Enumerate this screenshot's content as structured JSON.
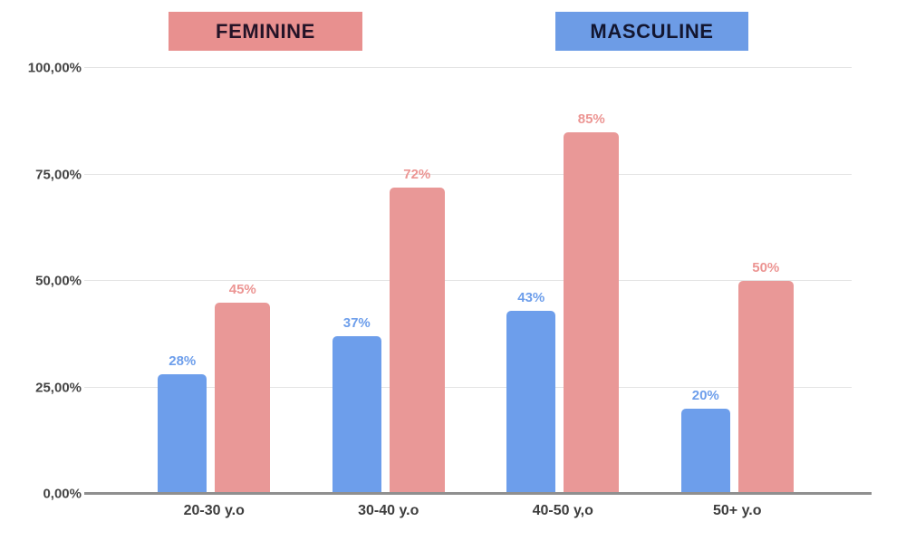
{
  "legend": {
    "feminine": {
      "label": "FEMININE",
      "bg": "#e8908f",
      "text": "#241327"
    },
    "masculine": {
      "label": "MASCULINE",
      "bg": "#6d9ce6",
      "text": "#131630"
    }
  },
  "chart_data": {
    "type": "bar",
    "categories": [
      "20-30 y.o",
      "30-40 y.o",
      "40-50 y,o",
      "50+ y.o"
    ],
    "series": [
      {
        "name": "MASCULINE",
        "key": "masculine",
        "values": [
          28,
          37,
          43,
          20
        ],
        "labels": [
          "28%",
          "37%",
          "43%",
          "20%"
        ],
        "bar_color": "#6d9eeb",
        "label_color": "#6d9eeb"
      },
      {
        "name": "FEMININE",
        "key": "feminine",
        "values": [
          45,
          72,
          85,
          50
        ],
        "labels": [
          "45%",
          "72%",
          "85%",
          "50%"
        ],
        "bar_color": "#e99897",
        "label_color": "#ec9593"
      }
    ],
    "title": "",
    "xlabel": "",
    "ylabel": "",
    "ylim": [
      0,
      100
    ],
    "yticks": [
      0,
      25,
      50,
      75,
      100
    ],
    "ytick_labels": [
      "0,00%",
      "25,00%",
      "50,00%",
      "75,00%",
      "100,00%"
    ],
    "grid": true,
    "legend_position": "top",
    "axis_colors": {
      "gridline": "#e4e4e4",
      "baseline": "#8f8f8f",
      "tick_text": "#454545",
      "category_text": "#3d3d3d"
    }
  }
}
